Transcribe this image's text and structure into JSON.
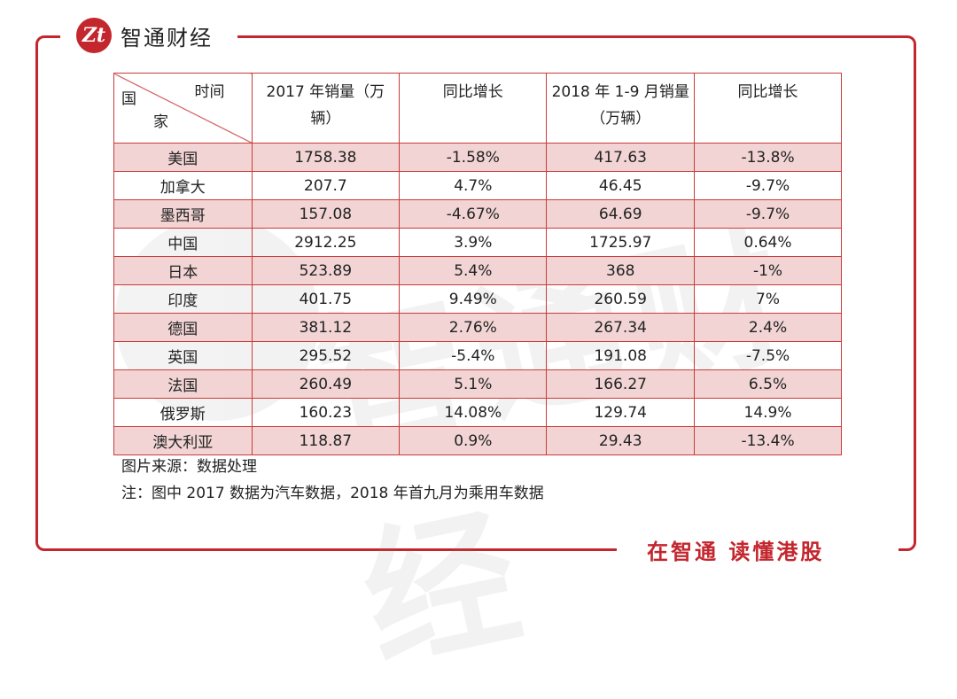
{
  "brand": {
    "logo_text": "Zt",
    "name": "智通财经"
  },
  "slogan": "在智通 读懂港股",
  "watermark": "智通财经",
  "table": {
    "header": {
      "corner_top": "时间",
      "corner_left": "国",
      "corner_bottom": "家",
      "col2": "2017 年销量（万辆）",
      "col3": "同比增长",
      "col4": "2018 年 1-9 月销量（万辆）",
      "col5": "同比增长"
    },
    "rows": [
      {
        "country": "美国",
        "sales_2017": "1758.38",
        "yoy_2017": "-1.58%",
        "sales_2018": "417.63",
        "yoy_2018": "-13.8%"
      },
      {
        "country": "加拿大",
        "sales_2017": "207.7",
        "yoy_2017": "4.7%",
        "sales_2018": "46.45",
        "yoy_2018": "-9.7%"
      },
      {
        "country": "墨西哥",
        "sales_2017": "157.08",
        "yoy_2017": "-4.67%",
        "sales_2018": "64.69",
        "yoy_2018": "-9.7%"
      },
      {
        "country": "中国",
        "sales_2017": "2912.25",
        "yoy_2017": "3.9%",
        "sales_2018": "1725.97",
        "yoy_2018": "0.64%"
      },
      {
        "country": "日本",
        "sales_2017": "523.89",
        "yoy_2017": "5.4%",
        "sales_2018": "368",
        "yoy_2018": "-1%"
      },
      {
        "country": "印度",
        "sales_2017": "401.75",
        "yoy_2017": "9.49%",
        "sales_2018": "260.59",
        "yoy_2018": "7%"
      },
      {
        "country": "德国",
        "sales_2017": "381.12",
        "yoy_2017": "2.76%",
        "sales_2018": "267.34",
        "yoy_2018": "2.4%"
      },
      {
        "country": "英国",
        "sales_2017": "295.52",
        "yoy_2017": "-5.4%",
        "sales_2018": "191.08",
        "yoy_2018": "-7.5%"
      },
      {
        "country": "法国",
        "sales_2017": "260.49",
        "yoy_2017": "5.1%",
        "sales_2018": "166.27",
        "yoy_2018": "6.5%"
      },
      {
        "country": "俄罗斯",
        "sales_2017": "160.23",
        "yoy_2017": "14.08%",
        "sales_2018": "129.74",
        "yoy_2018": "14.9%"
      },
      {
        "country": "澳大利亚",
        "sales_2017": "118.87",
        "yoy_2017": "0.9%",
        "sales_2018": "29.43",
        "yoy_2018": "-13.4%"
      }
    ]
  },
  "notes": {
    "source": "图片来源：数据处理",
    "note": "注：图中 2017 数据为汽车数据，2018 年首九月为乘用车数据"
  },
  "colors": {
    "accent": "#c4262e",
    "row_shade": "#f2d4d4"
  }
}
